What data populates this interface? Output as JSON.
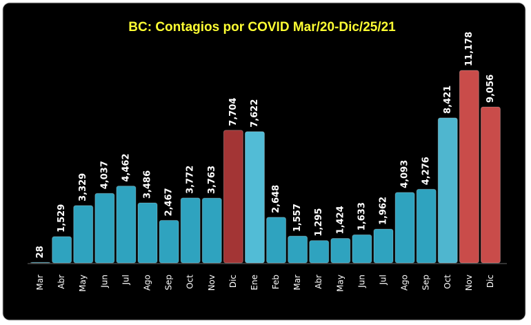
{
  "chart_data": {
    "type": "bar",
    "title": "BC: Contagios por COVID Mar/20-Dic/25/21",
    "categories": [
      "Mar",
      "Abr",
      "May",
      "Jun",
      "Jul",
      "Ago",
      "Sep",
      "Oct",
      "Nov",
      "Dic",
      "Ene",
      "Feb",
      "Mar",
      "Abr",
      "May",
      "Jun",
      "Jul",
      "Ago",
      "Sep",
      "Oct",
      "Nov",
      "Dic"
    ],
    "values": [
      28,
      1529,
      3329,
      4037,
      4462,
      3486,
      2467,
      3772,
      3763,
      7704,
      7622,
      2648,
      1557,
      1295,
      1424,
      1633,
      1962,
      4093,
      4276,
      8421,
      11178,
      9056
    ],
    "value_labels": [
      "28",
      "1,529",
      "3,329",
      "4,037",
      "4,462",
      "3,486",
      "2,467",
      "3,772",
      "3,763",
      "7,704",
      "7,622",
      "2,648",
      "1,557",
      "1,295",
      "1,424",
      "1,633",
      "1,962",
      "4,093",
      "4,276",
      "8,421",
      "11,178",
      "9,056"
    ],
    "colors": [
      "#2fa3bf",
      "#2fa3bf",
      "#2fa3bf",
      "#2fa3bf",
      "#2fa3bf",
      "#2fa3bf",
      "#2fa3bf",
      "#2fa3bf",
      "#2fa3bf",
      "#a33535",
      "#52bcd6",
      "#2fa3bf",
      "#2fa3bf",
      "#2fa3bf",
      "#2fa3bf",
      "#2fa3bf",
      "#2fa3bf",
      "#2fa3bf",
      "#2fa3bf",
      "#4fb6cf",
      "#c94c4a",
      "#c94c4a"
    ]
  }
}
